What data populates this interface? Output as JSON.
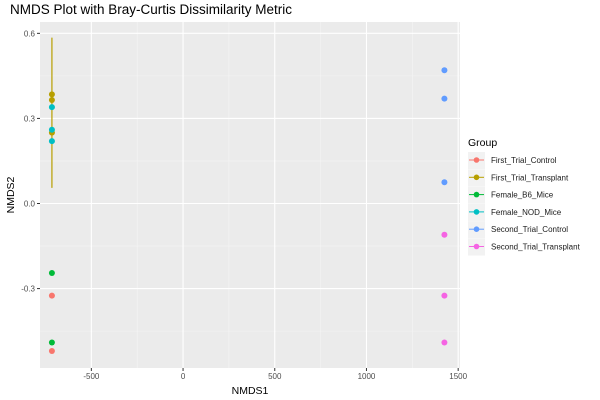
{
  "chart_data": {
    "type": "scatter",
    "title": "NMDS Plot with Bray-Curtis Dissimilarity Metric",
    "xlabel": "NMDS1",
    "ylabel": "NMDS2",
    "xlim": [
      -780,
      1510
    ],
    "ylim": [
      -0.58,
      0.64
    ],
    "x_ticks": [
      -500,
      0,
      500,
      1000,
      1500
    ],
    "x_tick_labels": [
      "-500",
      "0",
      "500",
      "1000",
      "1500"
    ],
    "y_ticks": [
      -0.3,
      0.0,
      0.3,
      0.6
    ],
    "y_tick_labels": [
      "-0.3",
      "0.0",
      "0.3",
      "0.6"
    ],
    "grid": true,
    "legend": {
      "title": "Group",
      "position": "right"
    },
    "series": [
      {
        "name": "First_Trial_Control",
        "color": "#F8766D",
        "points": [
          [
            -715,
            -0.325
          ],
          [
            -715,
            -0.52
          ]
        ]
      },
      {
        "name": "First_Trial_Transplant",
        "color": "#B79F00",
        "points": [
          [
            -715,
            0.385
          ],
          [
            -715,
            0.365
          ],
          [
            -715,
            0.25
          ]
        ],
        "error_bar": {
          "x": -715,
          "low": 0.055,
          "high": 0.585
        }
      },
      {
        "name": "Female_B6_Mice",
        "color": "#00BA38",
        "points": [
          [
            -715,
            -0.245
          ],
          [
            -715,
            -0.49
          ]
        ]
      },
      {
        "name": "Female_NOD_Mice",
        "color": "#00BFC4",
        "points": [
          [
            -715,
            0.34
          ],
          [
            -715,
            0.26
          ],
          [
            -715,
            0.22
          ]
        ]
      },
      {
        "name": "Second_Trial_Control",
        "color": "#619CFF",
        "points": [
          [
            1425,
            0.47
          ],
          [
            1425,
            0.37
          ],
          [
            1425,
            0.075
          ]
        ]
      },
      {
        "name": "Second_Trial_Transplant",
        "color": "#F564E3",
        "points": [
          [
            1425,
            -0.11
          ],
          [
            1425,
            -0.325
          ],
          [
            1425,
            -0.49
          ]
        ]
      }
    ]
  }
}
